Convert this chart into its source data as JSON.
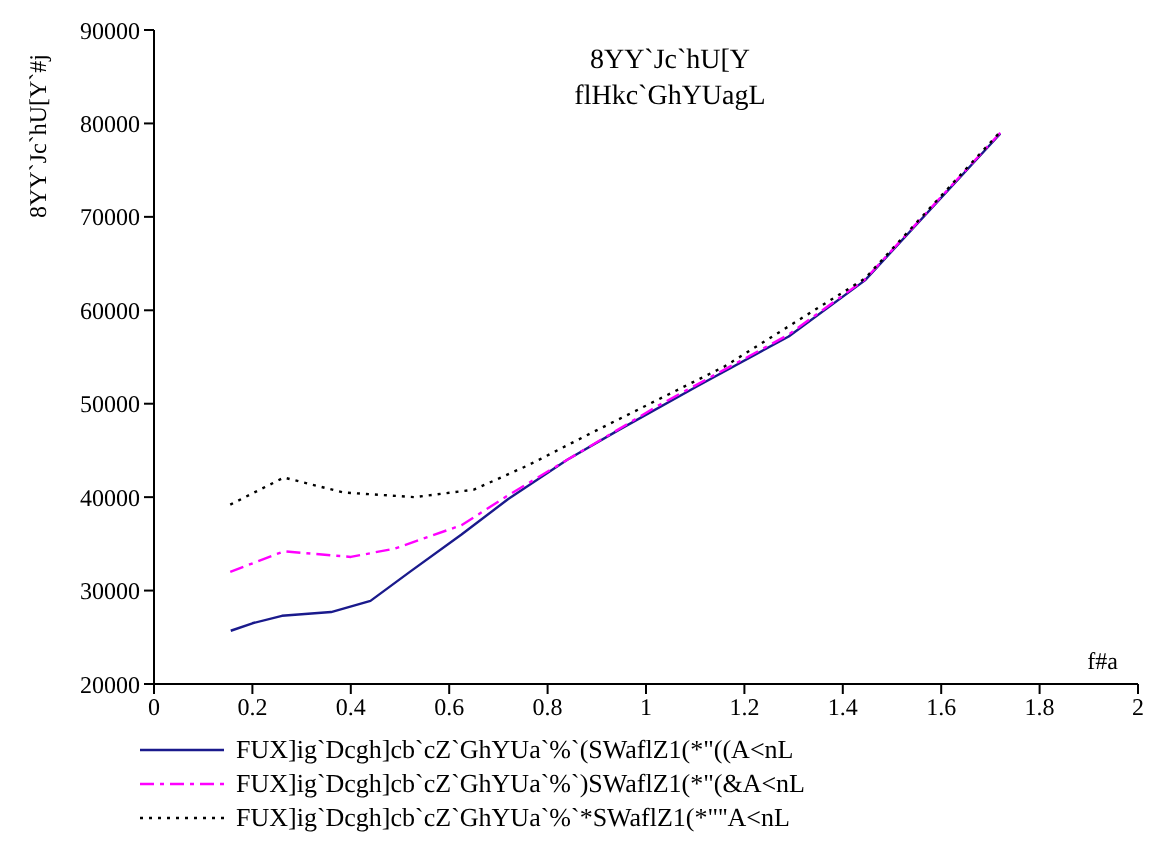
{
  "chart_data": {
    "type": "line",
    "title": "8YY`Jc`hU[Y",
    "subtitle": "flHkc`GhYUagL",
    "xlabel": "f#a",
    "ylabel": "8YY`Jc`hU[Y`#j",
    "xlim": [
      0,
      2
    ],
    "ylim": [
      20000,
      90000
    ],
    "xticks": [
      0,
      0.2,
      0.4,
      0.6,
      0.8,
      1,
      1.2,
      1.4,
      1.6,
      1.8,
      2
    ],
    "yticks": [
      20000,
      30000,
      40000,
      50000,
      60000,
      70000,
      80000,
      90000
    ],
    "grid": false,
    "legend": "bottom",
    "marker": "none",
    "series": [
      {
        "name": "FUX]ig`Dcgh]cb`cZ`GhYUa`%`(SWaflZ1(*\"((A<nL",
        "color": "#1a1a8c",
        "line_style": "solid",
        "x": [
          0.156,
          0.2,
          0.26,
          0.36,
          0.44,
          0.52,
          0.625,
          0.72,
          0.84,
          0.945,
          1.105,
          1.29,
          1.445,
          1.72
        ],
        "values": [
          25700,
          26500,
          27300,
          27700,
          28900,
          32000,
          36000,
          39800,
          44000,
          47200,
          51900,
          57200,
          63200,
          78900
        ]
      },
      {
        "name": "FUX]ig`Dcgh]cb`cZ`GhYUa`%`)SWaflZ1(*\"(&A<nL",
        "color": "#ff00ff",
        "line_style": "dashed",
        "x": [
          0.155,
          0.264,
          0.4,
          0.49,
          0.625,
          0.72,
          0.84,
          1.025,
          1.29,
          1.445,
          1.72
        ],
        "values": [
          32000,
          34200,
          33600,
          34500,
          37000,
          40200,
          44000,
          49800,
          57400,
          63300,
          79000
        ]
      },
      {
        "name": "FUX]ig`Dcgh]cb`cZ`GhYUa`%`*SWaflZ1(*\"''A<nL",
        "color": "#000000",
        "line_style": "dotted",
        "x": [
          0.155,
          0.264,
          0.385,
          0.53,
          0.65,
          0.76,
          0.89,
          1.16,
          1.445,
          1.72
        ],
        "values": [
          39200,
          42100,
          40500,
          40000,
          40800,
          43400,
          46900,
          54000,
          63400,
          79100
        ]
      }
    ]
  }
}
